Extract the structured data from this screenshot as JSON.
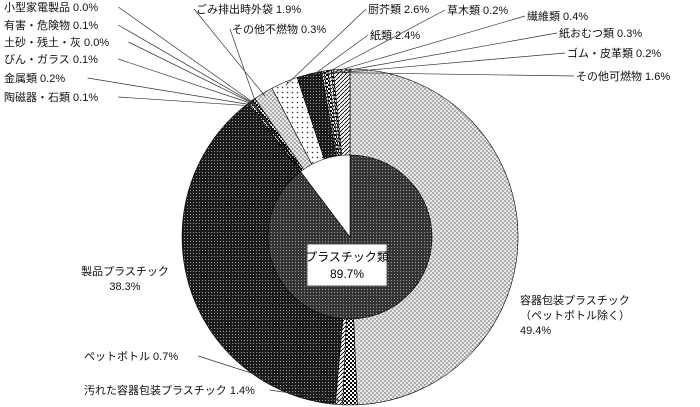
{
  "chart_data": {
    "type": "pie",
    "title": "",
    "center": {
      "label": "プラスチック類",
      "value": "89.7%"
    },
    "outer_ring": [
      {
        "name": "容器包装プラスチック（ペットボトル除く）",
        "value": 49.4,
        "label_lines": [
          "容器包装プラスチック",
          "（ペットボトル除く）",
          "49.4%"
        ],
        "pattern": "dots-light"
      },
      {
        "name": "汚れた容器包装プラスチック",
        "value": 1.4,
        "label_lines": [
          "汚れた容器包装プラスチック 1.4%"
        ],
        "pattern": "checker"
      },
      {
        "name": "ペットボトル",
        "value": 0.7,
        "label_lines": [
          "ペットボトル 0.7%"
        ],
        "pattern": "hatch"
      },
      {
        "name": "製品プラスチック",
        "value": 38.3,
        "label_lines": [
          "製品プラスチック",
          "38.3%"
        ],
        "pattern": "dots-dark"
      },
      {
        "name": "陶磁器・石類",
        "value": 0.1,
        "label_lines": [
          "陶磁器・石類 0.1%"
        ],
        "pattern": "hatch"
      },
      {
        "name": "金属類",
        "value": 0.2,
        "label_lines": [
          "金属類 0.2%"
        ],
        "pattern": "checker"
      },
      {
        "name": "びん・ガラス",
        "value": 0.1,
        "label_lines": [
          "びん・ガラス 0.1%"
        ],
        "pattern": "hatch"
      },
      {
        "name": "土砂・残土・灰",
        "value": 0.0,
        "label_lines": [
          "土砂・残土・灰 0.0%"
        ],
        "pattern": "hatch"
      },
      {
        "name": "有害・危険物",
        "value": 0.1,
        "label_lines": [
          "有害・危険物 0.1%"
        ],
        "pattern": "checker"
      },
      {
        "name": "小型家電製品",
        "value": 0.0,
        "label_lines": [
          "小型家電製品 0.0%"
        ],
        "pattern": "hatch"
      },
      {
        "name": "その他不燃物",
        "value": 0.3,
        "label_lines": [
          "その他不燃物 0.3%"
        ],
        "pattern": "checker"
      },
      {
        "name": "ごみ排出時外袋",
        "value": 1.9,
        "label_lines": [
          "ごみ排出時外袋 1.9%"
        ],
        "pattern": "dots-light"
      },
      {
        "name": "厨芥類",
        "value": 2.6,
        "label_lines": [
          "厨芥類 2.6%"
        ],
        "pattern": "sparse"
      },
      {
        "name": "紙類",
        "value": 2.4,
        "label_lines": [
          "紙類 2.4%"
        ],
        "pattern": "dots-dark"
      },
      {
        "name": "草木類",
        "value": 0.2,
        "label_lines": [
          "草木類 0.2%"
        ],
        "pattern": "hatch"
      },
      {
        "name": "繊維類",
        "value": 0.4,
        "label_lines": [
          "繊維類 0.4%"
        ],
        "pattern": "checker"
      },
      {
        "name": "紙おむつ類",
        "value": 0.3,
        "label_lines": [
          "紙おむつ類 0.3%"
        ],
        "pattern": "hatch"
      },
      {
        "name": "ゴム・皮革類",
        "value": 0.2,
        "label_lines": [
          "ゴム・皮革類 0.2%"
        ],
        "pattern": "checker"
      },
      {
        "name": "その他可燃物",
        "value": 1.6,
        "label_lines": [
          "その他可燃物 1.6%"
        ],
        "pattern": "hatch"
      }
    ],
    "inner_ring": [
      {
        "name": "プラスチック類",
        "value": 89.7,
        "pattern": "dots-dark"
      },
      {
        "name": "その他",
        "value": 10.3,
        "pattern": "white"
      }
    ],
    "colors": {
      "ink": "#000000",
      "paper": "#ffffff",
      "leader": "#333333"
    }
  }
}
